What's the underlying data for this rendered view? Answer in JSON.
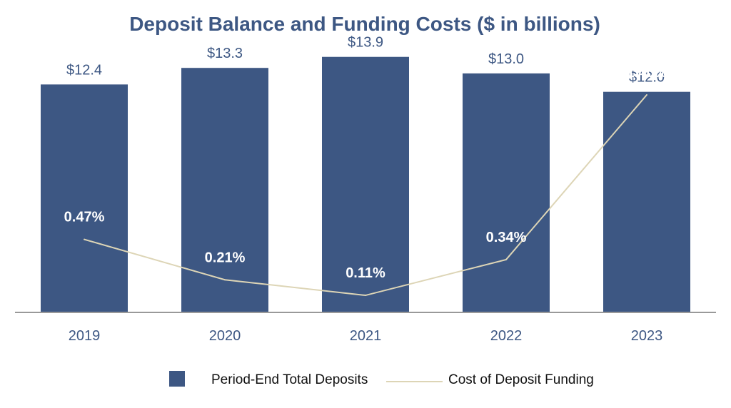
{
  "chart_data": {
    "type": "bar",
    "title": "Deposit Balance and Funding Costs ($ in billions)",
    "categories": [
      "2019",
      "2020",
      "2021",
      "2022",
      "2023"
    ],
    "series": [
      {
        "name": "Period-End Total Deposits",
        "type": "bar",
        "values": [
          12.4,
          13.3,
          13.9,
          13.0,
          12.0
        ],
        "labels": [
          "$12.4",
          "$13.3",
          "$13.9",
          "$13.0",
          "$12.0"
        ],
        "color": "#3d5783"
      },
      {
        "name": "Cost of Deposit Funding",
        "type": "line",
        "values": [
          0.47,
          0.21,
          0.11,
          0.34,
          1.4
        ],
        "labels": [
          "0.47%",
          "0.21%",
          "0.11%",
          "0.34%",
          "1.40%"
        ],
        "color": "#ddd5b6"
      }
    ],
    "ylim_bars": [
      0,
      14.2
    ],
    "ylim_line": [
      0,
      1.68
    ],
    "legend": "bottom",
    "grid": false,
    "colors": {
      "title": "#3d5783",
      "value_label": "#3d5783",
      "tick_label": "#3d5783",
      "pct_label": "#ffffff",
      "axis": "#999999"
    }
  }
}
